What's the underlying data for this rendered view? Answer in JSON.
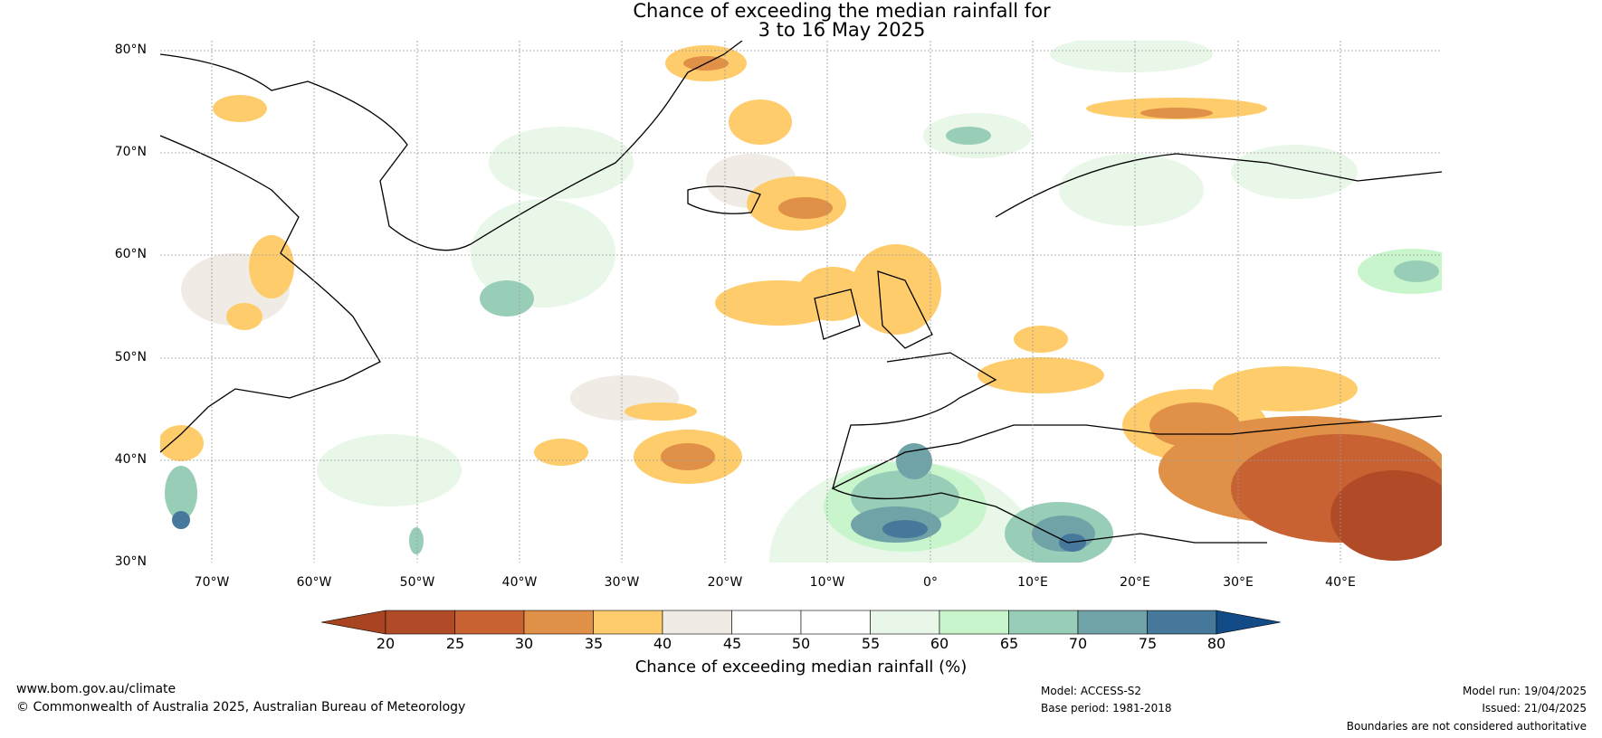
{
  "title": {
    "line1": "Chance of exceeding the median rainfall for",
    "line2": "3 to 16 May 2025"
  },
  "map": {
    "lat_labels": [
      "80°N",
      "70°N",
      "60°N",
      "50°N",
      "40°N",
      "30°N"
    ],
    "lon_labels": [
      "70°W",
      "60°W",
      "50°W",
      "40°W",
      "30°W",
      "20°W",
      "10°W",
      "0°",
      "10°E",
      "20°E",
      "30°E",
      "40°E"
    ],
    "lat_range": [
      30,
      81
    ],
    "lon_range": [
      -75,
      50
    ]
  },
  "colorbar": {
    "label": "Chance of exceeding median rainfall (%)",
    "ticks": [
      "20",
      "25",
      "30",
      "35",
      "40",
      "45",
      "50",
      "55",
      "60",
      "65",
      "70",
      "75",
      "80"
    ],
    "colors": {
      "below20": "#a8441f",
      "c20_25": "#b14a27",
      "c25_30": "#c96232",
      "c30_35": "#e09047",
      "c35_40": "#ffcc6b",
      "c40_45": "#f0ebe5",
      "c45_50": "#ffffff",
      "c50_55": "#ffffff",
      "c55_60": "#e8f7e8",
      "c60_65": "#c8f5cc",
      "c65_70": "#98ceb8",
      "c70_75": "#6fa3a7",
      "c75_80": "#45789a",
      "above80": "#134b86"
    }
  },
  "footer": {
    "website": "www.bom.gov.au/climate",
    "copyright": "© Commonwealth of Australia 2025, Australian Bureau of Meteorology",
    "model": "Model: ACCESS-S2",
    "base_period": "Base period: 1981-2018",
    "model_run": "Model run: 19/04/2025",
    "issued": "Issued: 21/04/2025",
    "disclaimer": "Boundaries are not considered authoritative"
  }
}
